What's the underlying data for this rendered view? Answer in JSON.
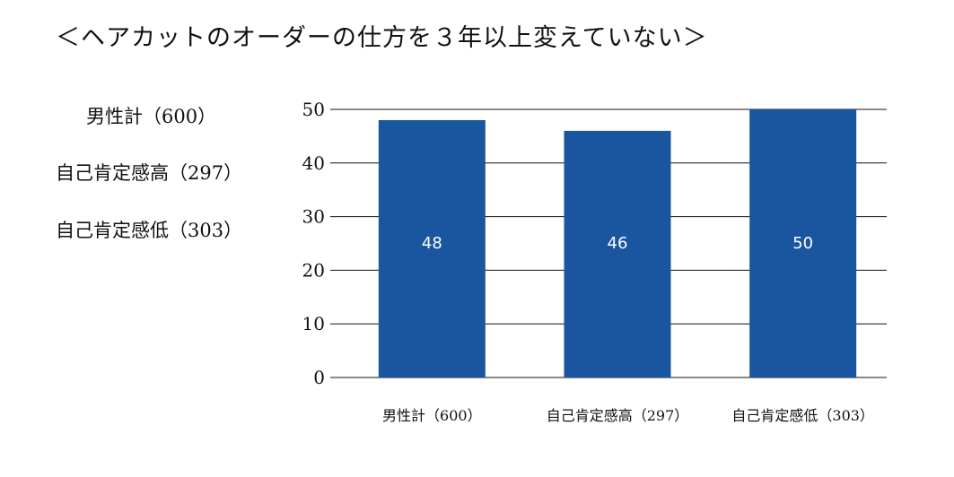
{
  "title": "＜ヘアカットのオーダーの仕方を３年以上変えていない＞",
  "side_labels": [
    "男性計（600）",
    "自己肯定感高（297）",
    "自己肯定感低（303）"
  ],
  "chart_data": {
    "type": "bar",
    "title": "＜ヘアカットのオーダーの仕方を３年以上変えていない＞",
    "categories": [
      "男性計（600）",
      "自己肯定感高（297）",
      "自己肯定感低（303）"
    ],
    "values": [
      48,
      46,
      50
    ],
    "data_labels": [
      "48",
      "46",
      "50"
    ],
    "xlabel": "",
    "ylabel": "",
    "ylim": [
      0,
      50
    ],
    "yticks": [
      0,
      10,
      20,
      30,
      40,
      50
    ],
    "grid": true,
    "legend": "left",
    "bar_color": "#1a56a0"
  }
}
